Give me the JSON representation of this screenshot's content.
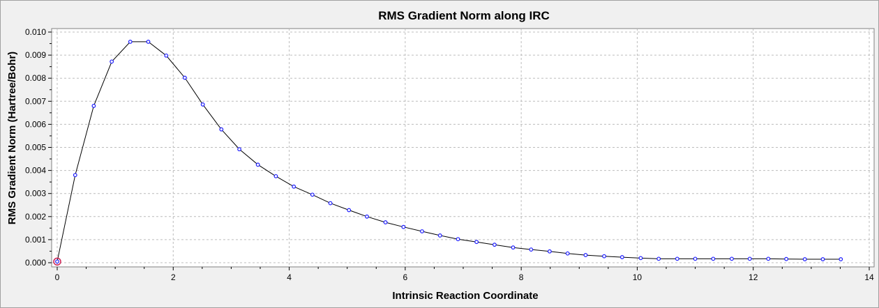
{
  "chart_data": {
    "type": "line",
    "title": "RMS Gradient Norm along IRC",
    "xlabel": "Intrinsic Reaction Coordinate",
    "ylabel": "RMS Gradient Norm (Hartree/Bohr)",
    "xlim": [
      0,
      14
    ],
    "ylim": [
      0,
      0.01
    ],
    "x_ticks": [
      "0",
      "2",
      "4",
      "6",
      "8",
      "10",
      "12",
      "14"
    ],
    "y_ticks": [
      "0.000",
      "0.001",
      "0.002",
      "0.003",
      "0.004",
      "0.005",
      "0.006",
      "0.007",
      "0.008",
      "0.009",
      "0.010"
    ],
    "grid": true,
    "legend": "none",
    "line_color": "#000000",
    "marker_color": "#1a1aff",
    "highlight_color": "#cc2255",
    "highlight_index": 0,
    "series": [
      {
        "x": [
          0,
          0.31,
          0.63,
          0.94,
          1.26,
          1.57,
          1.88,
          2.2,
          2.51,
          2.83,
          3.14,
          3.46,
          3.77,
          4.08,
          4.4,
          4.71,
          5.03,
          5.34,
          5.66,
          5.97,
          6.29,
          6.6,
          6.91,
          7.23,
          7.54,
          7.86,
          8.17,
          8.49,
          8.8,
          9.11,
          9.43,
          9.74,
          10.06,
          10.37,
          10.69,
          11.0,
          11.31,
          11.63,
          11.94,
          12.26,
          12.57,
          12.89,
          13.2,
          13.51
        ],
        "y": [
          5e-05,
          0.0038,
          0.0068,
          0.00872,
          0.00958,
          0.00958,
          0.00898,
          0.00802,
          0.00686,
          0.00578,
          0.00492,
          0.00425,
          0.00375,
          0.0033,
          0.00295,
          0.00258,
          0.00228,
          0.002,
          0.00175,
          0.00155,
          0.00136,
          0.00118,
          0.00102,
          0.0009,
          0.00078,
          0.00066,
          0.00057,
          0.00049,
          0.0004,
          0.00033,
          0.00028,
          0.00024,
          0.0002,
          0.00017,
          0.00017,
          0.00017,
          0.00017,
          0.00017,
          0.00017,
          0.00017,
          0.00016,
          0.00015,
          0.00015,
          0.00015
        ]
      }
    ]
  }
}
